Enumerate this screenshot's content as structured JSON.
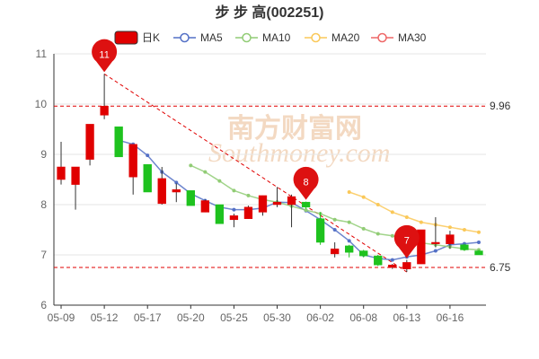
{
  "chart_data": {
    "type": "candlestick",
    "title": "步 步 高(002251)",
    "legend": [
      {
        "name": "日K",
        "color": "#e00000",
        "style": "candle"
      },
      {
        "name": "MA5",
        "color": "#5470c6",
        "style": "line"
      },
      {
        "name": "MA10",
        "color": "#91cc75",
        "style": "line"
      },
      {
        "name": "MA20",
        "color": "#fac858",
        "style": "line"
      },
      {
        "name": "MA30",
        "color": "#ee6666",
        "style": "line"
      }
    ],
    "legend_position": "top",
    "x_tick_labels": [
      "05-09",
      "05-12",
      "05-17",
      "05-20",
      "05-25",
      "05-30",
      "06-02",
      "06-08",
      "06-13",
      "06-16"
    ],
    "ylim": [
      6,
      11
    ],
    "y_ticks": [
      "6",
      "7",
      "8",
      "9",
      "10",
      "11"
    ],
    "up_color": "#e00000",
    "down_color": "#1ec21e",
    "candles": [
      {
        "date": "05-09",
        "open": 8.5,
        "close": 8.75,
        "high": 9.25,
        "low": 8.4
      },
      {
        "date": "05-10",
        "open": 8.4,
        "close": 8.75,
        "high": 8.75,
        "low": 7.9
      },
      {
        "date": "05-11",
        "open": 8.9,
        "close": 9.6,
        "high": 9.6,
        "low": 8.78
      },
      {
        "date": "05-12",
        "open": 9.78,
        "close": 9.96,
        "high": 10.6,
        "low": 9.7
      },
      {
        "date": "05-13",
        "open": 9.55,
        "close": 8.95,
        "high": 9.55,
        "low": 8.95
      },
      {
        "date": "05-16",
        "open": 8.55,
        "close": 9.2,
        "high": 9.2,
        "low": 8.2
      },
      {
        "date": "05-17",
        "open": 8.8,
        "close": 8.25,
        "high": 8.8,
        "low": 8.25
      },
      {
        "date": "05-18",
        "open": 8.02,
        "close": 8.52,
        "high": 8.75,
        "low": 8.0
      },
      {
        "date": "05-19",
        "open": 8.25,
        "close": 8.3,
        "high": 8.42,
        "low": 8.05
      },
      {
        "date": "05-20",
        "open": 8.28,
        "close": 7.98,
        "high": 8.28,
        "low": 7.98
      },
      {
        "date": "05-23",
        "open": 7.85,
        "close": 8.08,
        "high": 8.1,
        "low": 7.85
      },
      {
        "date": "05-24",
        "open": 8.0,
        "close": 7.62,
        "high": 8.0,
        "low": 7.62
      },
      {
        "date": "05-25",
        "open": 7.7,
        "close": 7.78,
        "high": 7.82,
        "low": 7.55
      },
      {
        "date": "05-26",
        "open": 7.72,
        "close": 7.95,
        "high": 7.98,
        "low": 7.72
      },
      {
        "date": "05-27",
        "open": 7.85,
        "close": 8.18,
        "high": 8.18,
        "low": 7.78
      },
      {
        "date": "05-30",
        "open": 8.0,
        "close": 8.05,
        "high": 8.35,
        "low": 7.95
      },
      {
        "date": "05-31",
        "open": 8.0,
        "close": 8.16,
        "high": 8.2,
        "low": 7.55
      },
      {
        "date": "06-01",
        "open": 8.05,
        "close": 7.95,
        "high": 8.06,
        "low": 7.92
      },
      {
        "date": "06-02",
        "open": 7.72,
        "close": 7.25,
        "high": 7.85,
        "low": 7.2
      },
      {
        "date": "06-06",
        "open": 7.02,
        "close": 7.12,
        "high": 7.25,
        "low": 6.95
      },
      {
        "date": "06-07",
        "open": 7.18,
        "close": 7.05,
        "high": 7.2,
        "low": 6.95
      },
      {
        "date": "06-08",
        "open": 7.08,
        "close": 6.98,
        "high": 7.1,
        "low": 6.95
      },
      {
        "date": "06-09",
        "open": 6.98,
        "close": 6.8,
        "high": 7.0,
        "low": 6.78
      },
      {
        "date": "06-10",
        "open": 6.75,
        "close": 6.8,
        "high": 6.82,
        "low": 6.72
      },
      {
        "date": "06-13",
        "open": 6.72,
        "close": 6.85,
        "high": 6.9,
        "low": 6.66
      },
      {
        "date": "06-14",
        "open": 6.82,
        "close": 7.5,
        "high": 7.5,
        "low": 6.82
      },
      {
        "date": "06-15",
        "open": 7.22,
        "close": 7.25,
        "high": 7.75,
        "low": 7.15
      },
      {
        "date": "06-16",
        "open": 7.22,
        "close": 7.4,
        "high": 7.48,
        "low": 7.12
      },
      {
        "date": "06-17",
        "open": 7.2,
        "close": 7.1,
        "high": 7.22,
        "low": 7.08
      },
      {
        "date": "06-20",
        "open": 7.08,
        "close": 7.0,
        "high": 7.1,
        "low": 7.0
      }
    ],
    "moving_averages": {
      "MA5": [
        null,
        null,
        null,
        null,
        9.28,
        9.2,
        8.98,
        8.65,
        8.44,
        8.22,
        8.08,
        7.95,
        7.9,
        7.9,
        7.93,
        8.05,
        8.04,
        7.88,
        7.7,
        7.5,
        7.28,
        7.0,
        6.93,
        6.9,
        6.96,
        7.0,
        7.08,
        7.2,
        7.22,
        7.25
      ],
      "MA10": [
        null,
        null,
        null,
        null,
        null,
        null,
        null,
        null,
        null,
        8.78,
        8.65,
        8.47,
        8.28,
        8.18,
        8.1,
        8.05,
        7.97,
        7.89,
        7.82,
        7.7,
        7.65,
        7.52,
        7.42,
        7.38,
        7.3,
        7.24,
        7.2,
        7.16,
        7.12,
        7.1
      ],
      "MA20": [
        null,
        null,
        null,
        null,
        null,
        null,
        null,
        null,
        null,
        null,
        null,
        null,
        null,
        null,
        null,
        null,
        null,
        null,
        null,
        null,
        8.25,
        8.15,
        8.0,
        7.85,
        7.75,
        7.65,
        7.6,
        7.55,
        7.5,
        7.45
      ],
      "MA30": []
    },
    "reference_lines": [
      {
        "value": 9.96,
        "label": "9.96",
        "color": "#e00000"
      },
      {
        "value": 6.75,
        "label": "6.75",
        "color": "#e00000"
      }
    ],
    "trend_line": {
      "from_index": 3,
      "from_value": 10.6,
      "to_index": 24,
      "to_value": 6.66,
      "color": "#e00000"
    },
    "markers": [
      {
        "label": "11",
        "index": 3,
        "value": 10.6
      },
      {
        "label": "8",
        "index": 17,
        "value": 8.06
      },
      {
        "label": "7",
        "index": 24,
        "value": 6.9
      }
    ]
  },
  "watermark": {
    "cn": "南方财富网",
    "en": "Southmoney.com"
  }
}
